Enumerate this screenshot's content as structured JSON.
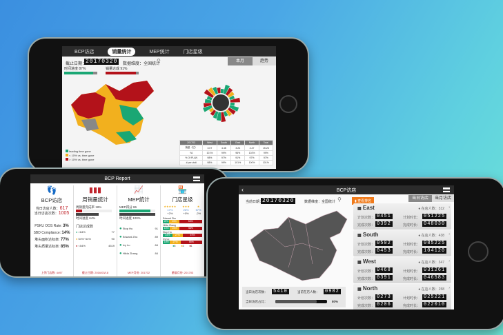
{
  "phone_top": {
    "tabs": [
      {
        "label": "BCP访店"
      },
      {
        "label": "销量统计",
        "active": true
      },
      {
        "label": "MEP统计"
      },
      {
        "label": "门店星级"
      }
    ],
    "date_label": "截止日期：",
    "date_value": "20170320",
    "dimension_label": "数据维度：全国统计",
    "time_progress": "时间进度 87%",
    "time_progress_pct": 87,
    "sales_progress": "销量达成 91%",
    "sales_progress_pct": 91,
    "toggle": [
      {
        "label": "本月",
        "active": true
      },
      {
        "label": "趋势"
      }
    ],
    "legend": [
      {
        "label": "leading time gone",
        "color": "#1aa774"
      },
      {
        "label": "< 10% vs. time gone",
        "color": "#f2b01e"
      },
      {
        "label": "> 10% vs. time gone",
        "color": "#b3121a"
      }
    ],
    "table": {
      "headers": [
        "201703",
        "West",
        "South",
        "East",
        "North",
        "Total"
      ],
      "rows": [
        [
          "销量（亿）",
          "3.07",
          "4.48",
          "3.24",
          "4.47",
          "15.26"
        ],
        [
          "YA",
          "101%",
          "99%",
          "96%",
          "102%",
          "99%"
        ],
        [
          "% Of PLAN",
          "98%",
          "97%",
          "91%",
          "97%",
          "97%"
        ],
        [
          "# per visit",
          "98%",
          "99%",
          "101%",
          "100%",
          "101%"
        ]
      ]
    }
  },
  "phone_left": {
    "title": "BCP Report",
    "bcp": {
      "title": "BCP访店",
      "visitors_label": "当日访店人数：",
      "visitors": "617",
      "visits_label": "当日访店次数：",
      "visits": "1005",
      "metrics": [
        {
          "label": "PSKU OOS Rate:",
          "value": "3%"
        },
        {
          "label": "SBD Compliance:",
          "value": "14%"
        },
        {
          "label": "堆头面积达标率:",
          "value": "77%"
        },
        {
          "label": "堆头质量达标率:",
          "value": "85%"
        }
      ],
      "footer": "上传门店数: 4497"
    },
    "weekly": {
      "title": "周销量统计",
      "rate_label": "周销量完成率 18%",
      "rate_pct": 18,
      "time_label": "时间进度 64%",
      "time_pct": 64,
      "sub": "门店达成数",
      "items": [
        {
          "label": ">64%",
          "value": "77",
          "color": "#1aa774"
        },
        {
          "label": "54%~64%",
          "value": "90",
          "color": "#f2b01e"
        },
        {
          "label": "<54%",
          "value": "4519",
          "color": "#b3121a"
        }
      ],
      "footer": "截止日期: 2016/03/18"
    },
    "mep": {
      "title": "MEP统计",
      "score_label": "MEP得分 86",
      "score_pct": 86,
      "time_label": "时间进度 100%",
      "people": [
        {
          "name": "Stop Hu",
          "value": "91"
        },
        {
          "name": "Edward Zhu",
          "value": "89"
        },
        {
          "name": "Ivy Lu",
          "value": "84"
        },
        {
          "name": "Hilda Zhang",
          "value": "84"
        }
      ],
      "footer": "MEP月份: 201702"
    },
    "stars": {
      "title": "门店星级",
      "levels": [
        {
          "stars": "★★★★★",
          "pct": "17%",
          "delta": "+2%"
        },
        {
          "stars": "★★★",
          "pct": "26%",
          "delta": "+0%"
        },
        {
          "stars": "★",
          "pct": "57%",
          "delta": "-2%"
        }
      ],
      "people": [
        {
          "name": "Edward Zhu",
          "segs": [
            "15%",
            "23%",
            "54%"
          ]
        },
        {
          "name": "Hilda Zhang",
          "segs": [
            "18%",
            "24%",
            "58%"
          ]
        },
        {
          "name": "Stop Hu",
          "segs": [
            "24%",
            "27%",
            "49%"
          ]
        },
        {
          "name": "Ivy Lu",
          "segs": [
            "18%",
            "27%",
            "55%"
          ]
        }
      ],
      "legend": [
        "5",
        "3",
        "1"
      ],
      "footer": "星级月份: 201703"
    }
  },
  "phone_right": {
    "title": "BCP访店",
    "date_label": "当前日期：",
    "date_value": "20170320",
    "dimension_label": "数据维度：全国统计",
    "stats_button": "查看排名",
    "tabs": [
      {
        "label": "当日访店",
        "active": true
      },
      {
        "label": "当月访店"
      }
    ],
    "regions": [
      {
        "name": "East",
        "people_label": "在店人数：312",
        "plan": "0451",
        "done": "0392",
        "plan_time": "051225",
        "done_time": "048030"
      },
      {
        "name": "South",
        "people_label": "在店人数：438",
        "plan": "0502",
        "done": "0453",
        "plan_time": "085225",
        "done_time": "104120"
      },
      {
        "name": "West",
        "people_label": "在店人数：347",
        "plan": "0468",
        "done": "0391",
        "plan_time": "031261",
        "done_time": "046583"
      },
      {
        "name": "North",
        "people_label": "在店人数：258",
        "plan": "0273",
        "done": "0206",
        "plan_time": "025221",
        "done_time": "022010"
      }
    ],
    "plan_label": "计划次数：",
    "done_label": "完成次数：",
    "plan_time_label": "计划时长：",
    "done_time_label": "完成时长：",
    "footer": {
      "visits_label": "当日访店次数：",
      "visits": "5410",
      "present_label": "当前在店人数：",
      "present": "0982",
      "rate_label": "当日访店占比：",
      "rate": "80%",
      "rate_pct": 80
    }
  },
  "colors": {
    "green": "#1aa774",
    "yellow": "#f2b01e",
    "red": "#b3121a",
    "orange": "#f07a1a"
  }
}
